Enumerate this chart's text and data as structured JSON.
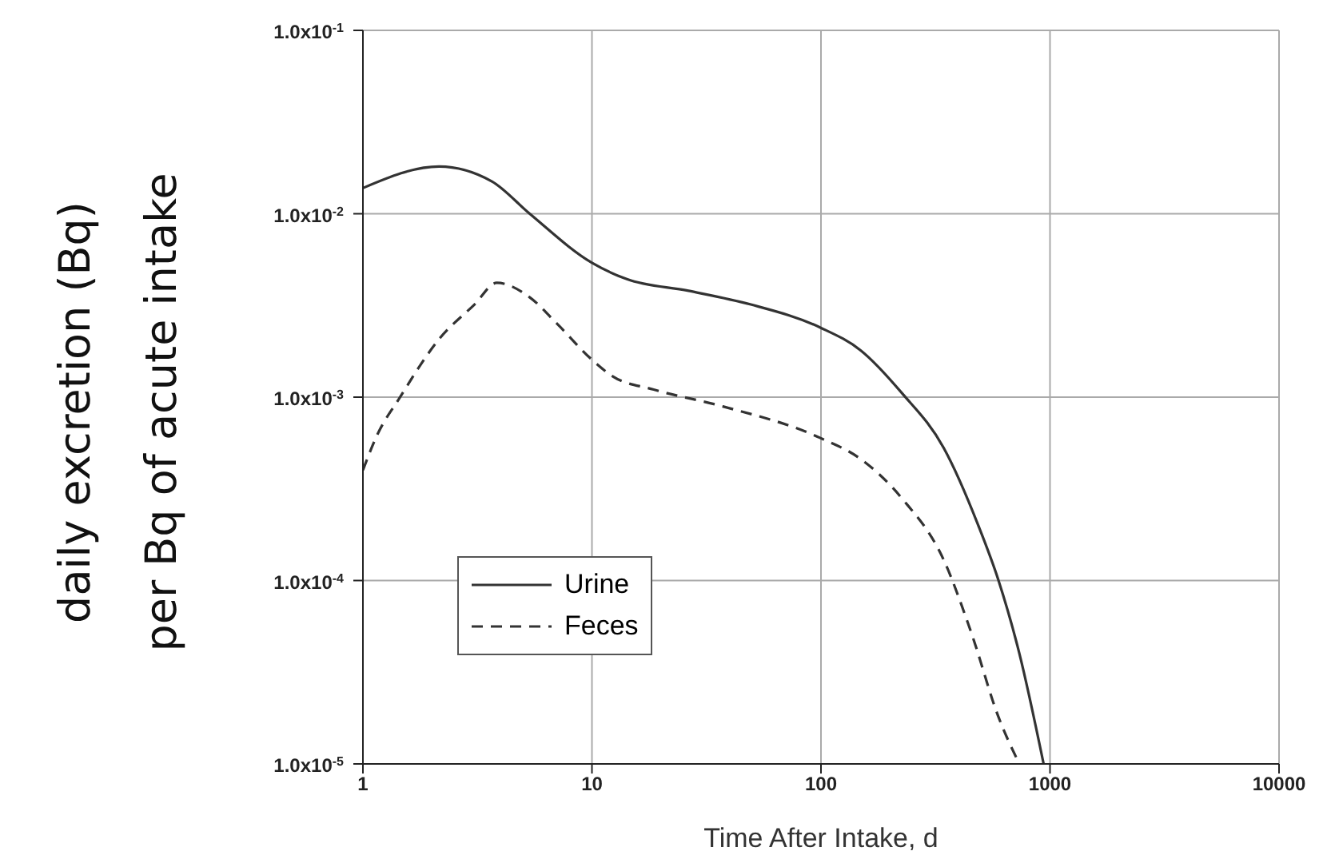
{
  "chart_data": {
    "type": "line",
    "xlabel": "Time After Intake, d",
    "ylabel": "daily excretion (Bq) per Bq of acute intake",
    "log": "xy",
    "xlim": [
      1,
      10000
    ],
    "xticks": [
      1,
      10,
      100,
      1000,
      10000
    ],
    "ylim": [
      1e-05,
      0.1
    ],
    "yticks": [
      {
        "value": 1e-05,
        "label": "1.0x10$^{-5}$"
      },
      {
        "value": 0.0001,
        "label": "1.0x10$^{-4}$"
      },
      {
        "value": 0.001,
        "label": "1.0x10$^{-3}$"
      },
      {
        "value": 0.01,
        "label": "1.0x10$^{-2}$"
      },
      {
        "value": 0.1,
        "label": "1.0x10$^{-1}$"
      }
    ],
    "grid": true,
    "legend": "bottom left",
    "series": [
      {
        "name": "Urine",
        "color": "#333333",
        "line_style": "solid",
        "x": [
          1,
          2.15,
          3.66,
          5.35,
          10,
          14.2,
          26.4,
          49.4,
          99,
          149,
          226,
          343,
          486,
          596,
          735,
          938
        ],
        "values": [
          0.0138,
          0.0181,
          0.015,
          0.01,
          0.0054,
          0.0044,
          0.0038,
          0.0032,
          0.0024,
          0.0018,
          0.00105,
          0.00053,
          0.0002,
          0.0001,
          4e-05,
          1e-05
        ]
      },
      {
        "name": "Feces",
        "color": "#333333",
        "line_style": "dashed",
        "x": [
          1,
          1.16,
          1.43,
          2.17,
          3.07,
          3.84,
          5.35,
          7.07,
          10,
          12.3,
          18.6,
          37.3,
          99,
          149,
          226,
          343,
          453,
          596,
          735
        ],
        "values": [
          0.0004,
          0.00063,
          0.00097,
          0.0021,
          0.0032,
          0.0042,
          0.0035,
          0.0025,
          0.0016,
          0.0013,
          0.0011,
          0.00089,
          0.0006,
          0.00046,
          0.00028,
          0.00013,
          5.2e-05,
          1.8e-05,
          1e-05
        ]
      }
    ]
  }
}
